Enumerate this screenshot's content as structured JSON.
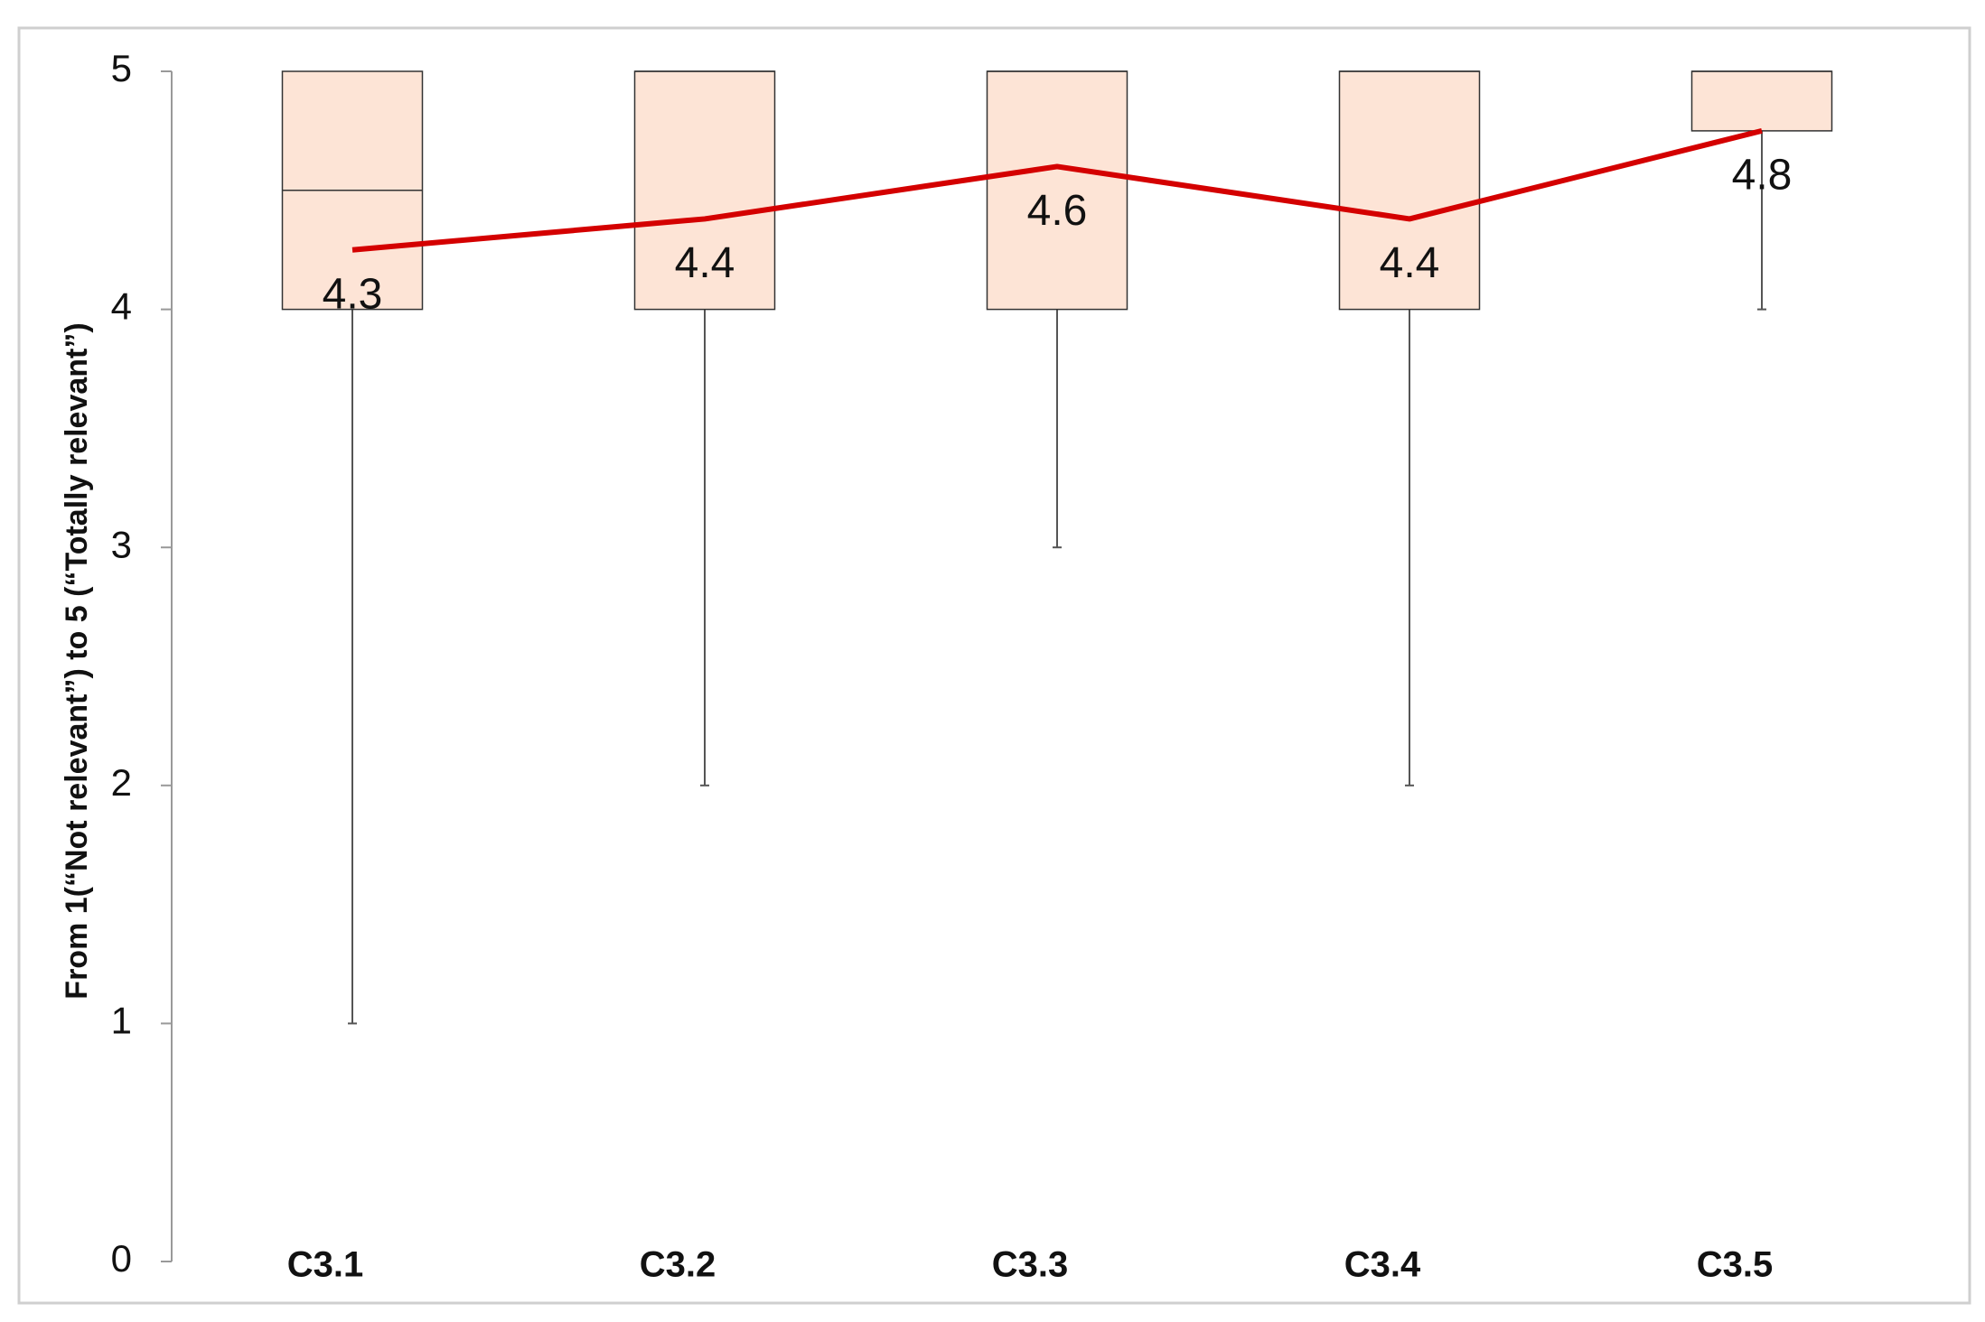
{
  "chart_data": {
    "type": "box",
    "y_label": "From 1(“Not relevant”) to 5 (“Totally relevant”)",
    "categories": [
      "C3.1",
      "C3.2",
      "C3.3",
      "C3.4",
      "C3.5"
    ],
    "min": [
      1,
      2,
      3,
      2,
      4
    ],
    "q1": [
      4,
      4,
      4,
      4,
      4.75
    ],
    "median": [
      4.5,
      5,
      5,
      5,
      5
    ],
    "q3": [
      5,
      5,
      5,
      5,
      5
    ],
    "max": [
      5,
      5,
      5,
      5,
      5
    ],
    "box_color": "#fde4d6",
    "mean": {
      "values": [
        4.25,
        4.38,
        4.6,
        4.38,
        4.75
      ],
      "value_labels": [
        "4.3",
        "4.4",
        "4.6",
        "4.4",
        "4.8"
      ],
      "color": "#d40000"
    },
    "ylim": [
      0,
      5
    ],
    "yticks": [
      0,
      1,
      2,
      3,
      4,
      5
    ]
  }
}
